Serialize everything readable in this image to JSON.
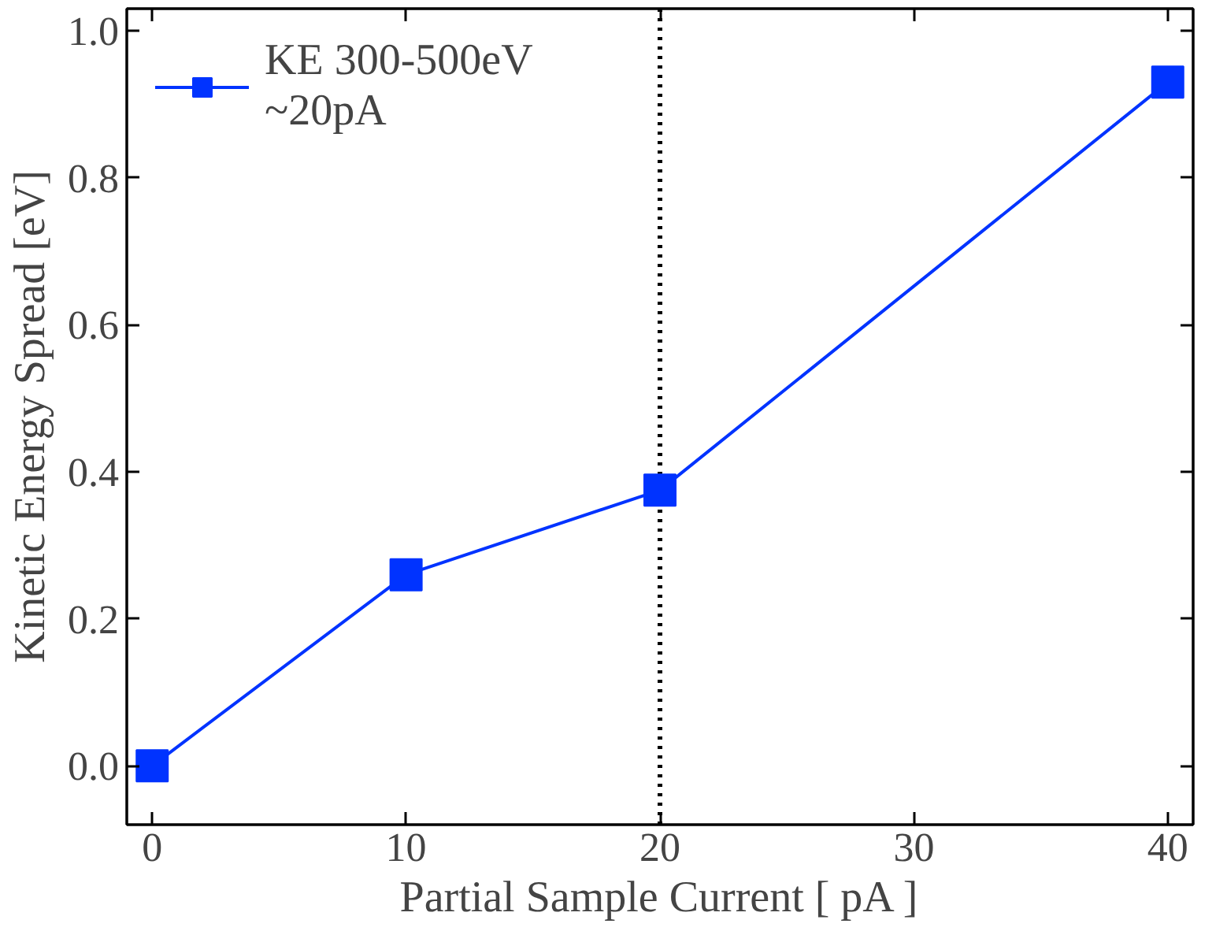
{
  "chart_data": {
    "type": "line",
    "xlabel": "Partial Sample Current [ pA ]",
    "ylabel": "Kinetic Energy Spread [eV]",
    "x": [
      0,
      10,
      20,
      40
    ],
    "series": [
      {
        "name": "KE 300-500eV\n~20pA",
        "color": "#0033ff",
        "values": [
          0,
          0.26,
          0.375,
          0.93
        ]
      }
    ],
    "xlim": [
      -1,
      41
    ],
    "ylim": [
      -0.08,
      1.03
    ],
    "xticks": [
      0,
      10,
      20,
      30,
      40
    ],
    "yticks": [
      {
        "value": 0,
        "label": "0.0"
      },
      {
        "value": 0.2,
        "label": "0.2"
      },
      {
        "value": 0.4,
        "label": "0.4"
      },
      {
        "value": 0.6,
        "label": "0.6"
      },
      {
        "value": 0.8,
        "label": "0.8"
      },
      {
        "value": 1,
        "label": "1.0"
      }
    ],
    "ref_lines": [
      {
        "axis": "x",
        "value": 20,
        "label": null,
        "color": "#000000",
        "line_style": "dotted"
      }
    ],
    "grid": false,
    "legend": "top left",
    "marker": "square",
    "line_style": "solid"
  }
}
